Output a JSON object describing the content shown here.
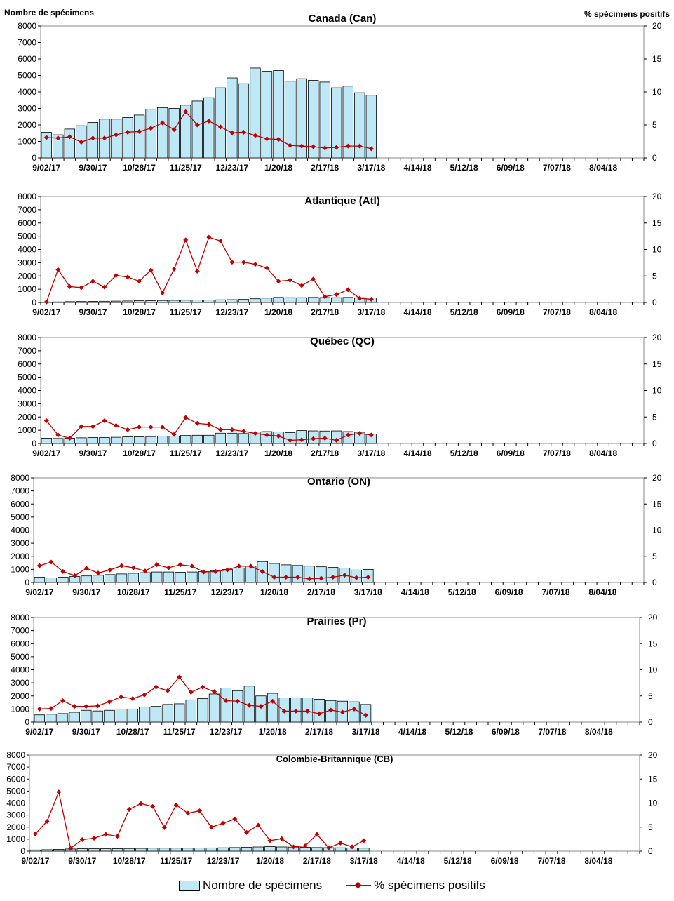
{
  "labels": {
    "left_axis_title": "Nombre de spécimens",
    "right_axis_title": "% spécimens positifs"
  },
  "legend": [
    {
      "label": "Nombre de spécimens",
      "type": "bar",
      "color": "#bfe8f7"
    },
    {
      "label": "% spécimens positifs",
      "type": "line",
      "color": "#c00000"
    }
  ],
  "chart_data": [
    {
      "type": "bar+line",
      "title": "Canada (Can)",
      "ylabel": "Nombre de spécimens",
      "y2label": "% spécimens positifs",
      "ylim": [
        0,
        8000
      ],
      "y2lim": [
        0,
        20
      ],
      "x_ticks": [
        "9/02/17",
        "9/30/17",
        "10/28/17",
        "11/25/17",
        "12/23/17",
        "1/20/18",
        "2/17/18",
        "3/17/18",
        "4/14/18",
        "5/12/18",
        "6/09/18",
        "7/07/18",
        "8/04/18"
      ],
      "num_weeks": 52,
      "bars": [
        1550,
        1400,
        1750,
        1950,
        2150,
        2350,
        2350,
        2450,
        2600,
        2950,
        3050,
        3000,
        3200,
        3450,
        3650,
        4250,
        4850,
        4500,
        5450,
        5250,
        5300,
        4650,
        4800,
        4700,
        4600,
        4250,
        4350,
        3950,
        3800
      ],
      "line": [
        3.1,
        3.0,
        3.2,
        2.4,
        3.0,
        3.0,
        3.5,
        3.9,
        4.0,
        4.5,
        5.3,
        4.3,
        7.0,
        5.0,
        5.6,
        4.7,
        3.8,
        3.9,
        3.4,
        2.9,
        2.8,
        1.9,
        1.8,
        1.7,
        1.5,
        1.6,
        1.8,
        1.8,
        1.4
      ]
    },
    {
      "type": "bar+line",
      "title": "Atlantique (Atl)",
      "ylim": [
        0,
        8000
      ],
      "y2lim": [
        0,
        20
      ],
      "x_ticks": [
        "9/02/17",
        "9/30/17",
        "10/28/17",
        "11/25/17",
        "12/23/17",
        "1/20/18",
        "2/17/18",
        "3/17/18",
        "4/14/18",
        "5/12/18",
        "6/09/18",
        "7/07/18",
        "8/04/18"
      ],
      "num_weeks": 52,
      "bars": [
        30,
        40,
        60,
        70,
        80,
        90,
        100,
        110,
        130,
        140,
        150,
        160,
        170,
        180,
        190,
        200,
        210,
        230,
        280,
        330,
        380,
        360,
        360,
        380,
        370,
        360,
        380,
        360,
        340
      ],
      "line": [
        0.1,
        6.2,
        3.0,
        2.8,
        4.0,
        2.9,
        5.1,
        4.8,
        4.0,
        6.1,
        1.8,
        6.3,
        11.8,
        5.9,
        12.3,
        11.6,
        7.6,
        7.6,
        7.2,
        6.5,
        4.0,
        4.2,
        3.2,
        4.4,
        1.1,
        1.5,
        2.4,
        0.8,
        0.6
      ]
    },
    {
      "type": "bar+line",
      "title": "Québec (QC)",
      "ylim": [
        0,
        8000
      ],
      "y2lim": [
        0,
        20
      ],
      "x_ticks": [
        "9/02/17",
        "9/30/17",
        "10/28/17",
        "11/25/17",
        "12/23/17",
        "1/20/18",
        "2/17/18",
        "3/17/18",
        "4/14/18",
        "5/12/18",
        "6/09/18",
        "7/07/18",
        "8/04/18"
      ],
      "num_weeks": 52,
      "bars": [
        400,
        380,
        400,
        430,
        450,
        450,
        470,
        500,
        500,
        520,
        550,
        560,
        600,
        620,
        620,
        780,
        780,
        750,
        870,
        900,
        880,
        820,
        980,
        950,
        940,
        950,
        900,
        850,
        720
      ],
      "line": [
        4.3,
        1.6,
        1.0,
        3.2,
        3.2,
        4.3,
        3.4,
        2.6,
        3.1,
        3.1,
        3.1,
        1.7,
        4.9,
        3.8,
        3.6,
        2.6,
        2.6,
        2.3,
        1.9,
        1.6,
        1.4,
        0.6,
        0.7,
        0.9,
        1.0,
        0.6,
        1.6,
        1.9,
        1.6
      ]
    },
    {
      "type": "bar+line",
      "title": "Ontario (ON)",
      "ylim": [
        0,
        8000
      ],
      "y2lim": [
        0,
        20
      ],
      "x_ticks": [
        "9/02/17",
        "9/30/17",
        "10/28/17",
        "11/25/17",
        "12/23/17",
        "1/20/18",
        "2/17/18",
        "3/17/18",
        "4/14/18",
        "5/12/18",
        "6/09/18",
        "7/07/18",
        "8/04/18"
      ],
      "num_weeks": 52,
      "bars": [
        400,
        350,
        400,
        450,
        500,
        550,
        600,
        650,
        700,
        750,
        800,
        800,
        780,
        800,
        830,
        900,
        1000,
        1100,
        1250,
        1600,
        1450,
        1350,
        1300,
        1250,
        1200,
        1150,
        1100,
        950,
        1000
      ],
      "line": [
        3.2,
        3.9,
        2.1,
        1.3,
        2.7,
        1.8,
        2.4,
        3.2,
        2.8,
        2.2,
        3.4,
        2.8,
        3.4,
        3.1,
        2.0,
        2.1,
        2.4,
        3.1,
        3.1,
        2.1,
        1.0,
        1.0,
        1.0,
        0.7,
        0.8,
        1.0,
        1.4,
        0.9,
        1.0
      ]
    },
    {
      "type": "bar+line",
      "title": "Prairies (Pr)",
      "ylim": [
        0,
        8000
      ],
      "y2lim": [
        0,
        20
      ],
      "x_ticks": [
        "9/02/17",
        "9/30/17",
        "10/28/17",
        "11/25/17",
        "12/23/17",
        "1/20/18",
        "2/17/18",
        "3/17/18",
        "4/14/18",
        "5/12/18",
        "6/09/18",
        "7/07/18",
        "8/04/18"
      ],
      "num_weeks": 52,
      "bars": [
        550,
        600,
        650,
        750,
        900,
        850,
        900,
        1000,
        1000,
        1150,
        1200,
        1350,
        1400,
        1700,
        1800,
        2150,
        2600,
        2400,
        2750,
        2000,
        2200,
        1850,
        1850,
        1850,
        1750,
        1650,
        1600,
        1550,
        1350
      ],
      "line": [
        2.5,
        2.6,
        4.1,
        3.0,
        3.0,
        3.1,
        3.9,
        4.8,
        4.5,
        5.2,
        6.7,
        6.0,
        8.6,
        5.7,
        6.7,
        5.8,
        4.1,
        4.0,
        3.2,
        3.0,
        4.0,
        2.1,
        2.1,
        2.1,
        1.6,
        2.3,
        1.9,
        2.5,
        1.3
      ]
    },
    {
      "type": "bar+line",
      "title": "Colombie-Britannique (CB)",
      "ylim": [
        0,
        8000
      ],
      "y2lim": [
        0,
        20
      ],
      "x_ticks": [
        "9/02/17",
        "9/30/17",
        "10/28/17",
        "11/25/17",
        "12/23/17",
        "1/20/18",
        "2/17/18",
        "3/17/18",
        "4/14/18",
        "5/12/18",
        "6/09/18",
        "7/07/18",
        "8/04/18"
      ],
      "num_weeks": 52,
      "bars": [
        100,
        120,
        150,
        180,
        200,
        200,
        200,
        210,
        220,
        230,
        250,
        250,
        250,
        250,
        260,
        270,
        280,
        300,
        320,
        350,
        380,
        350,
        340,
        320,
        300,
        290,
        280,
        260,
        250
      ],
      "line": [
        3.6,
        6.2,
        12.3,
        0.6,
        2.4,
        2.7,
        3.5,
        3.1,
        8.7,
        9.9,
        9.3,
        4.9,
        9.6,
        7.9,
        8.4,
        5.0,
        5.8,
        6.7,
        3.9,
        5.4,
        2.2,
        2.6,
        0.9,
        1.1,
        3.5,
        0.7,
        1.7,
        0.9,
        2.2
      ]
    }
  ]
}
